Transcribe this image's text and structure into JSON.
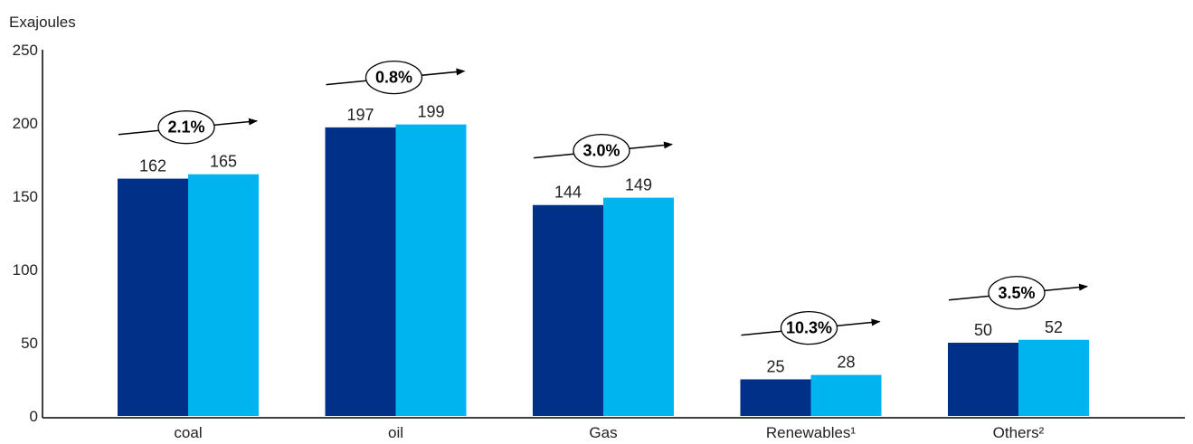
{
  "chart_data": {
    "type": "bar",
    "ylabel": "Exajoules",
    "ylim": [
      0,
      250
    ],
    "yticks": [
      0,
      50,
      100,
      150,
      200,
      250
    ],
    "categories": [
      "coal",
      "oil",
      "Gas",
      "Renewables¹",
      "Others²"
    ],
    "series": [
      {
        "values": [
          162,
          197,
          144,
          25,
          50
        ],
        "color": "#003087"
      },
      {
        "values": [
          165,
          199,
          149,
          28,
          52
        ],
        "color": "#00b5ef"
      }
    ],
    "annotations": [
      "2.1%",
      "0.8%",
      "3.0%",
      "10.3%",
      "3.5%"
    ],
    "grid": false,
    "legend": "none"
  }
}
